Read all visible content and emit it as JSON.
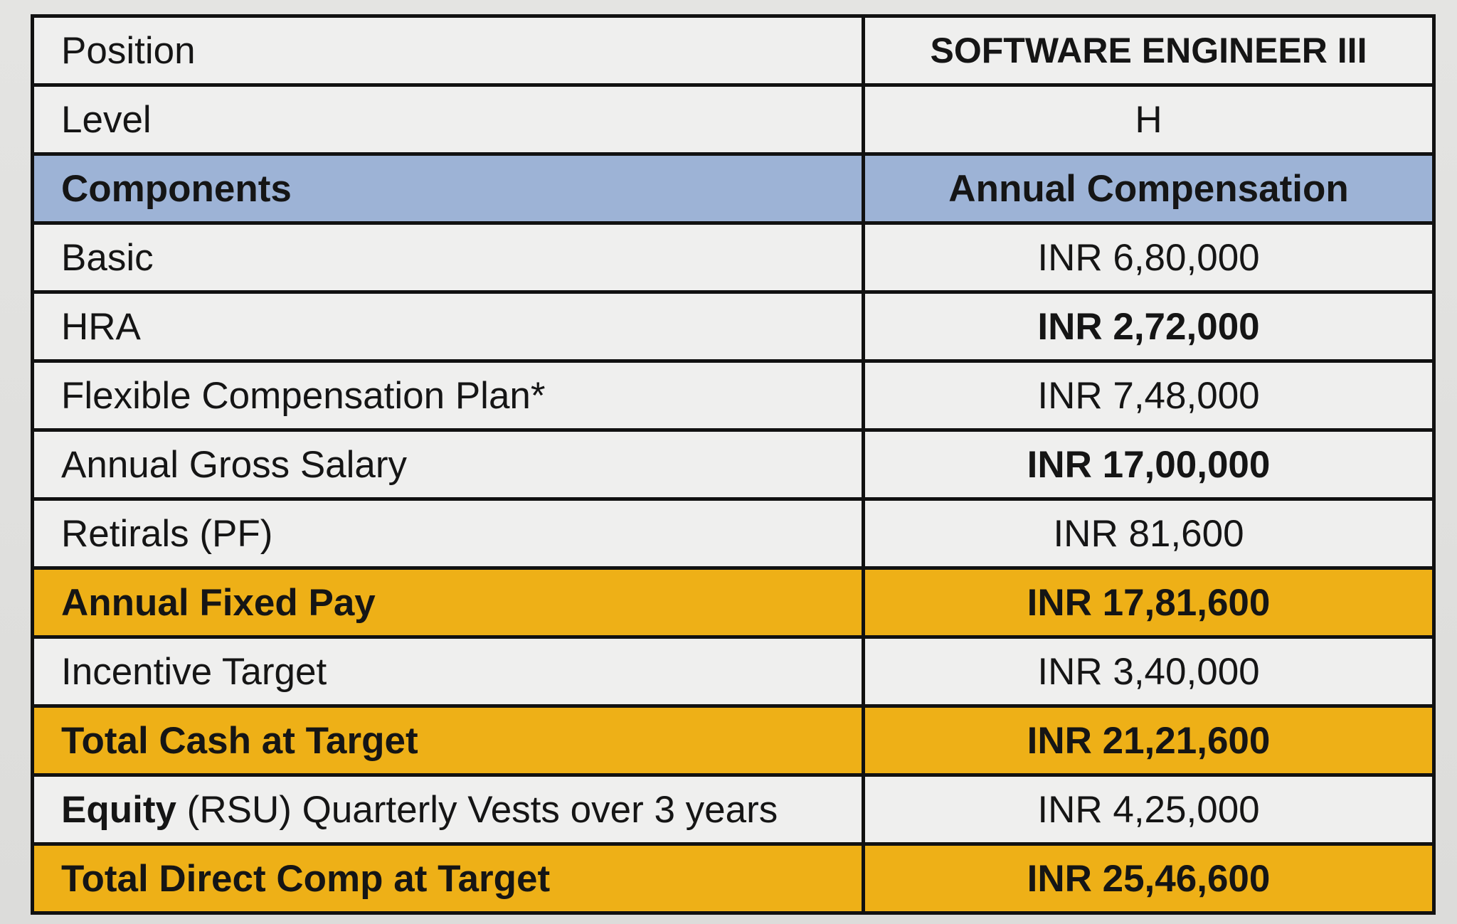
{
  "table": {
    "position": {
      "label": "Position",
      "value": "SOFTWARE ENGINEER III"
    },
    "level": {
      "label": "Level",
      "value": "H"
    },
    "header": {
      "label": "Components",
      "value": "Annual Compensation"
    },
    "rows": {
      "basic": {
        "label": "Basic",
        "value": "INR 6,80,000"
      },
      "hra": {
        "label": "HRA",
        "value": "INR 2,72,000"
      },
      "fcp": {
        "label": "Flexible Compensation Plan*",
        "value": "INR 7,48,000"
      },
      "gross": {
        "label": "Annual Gross Salary",
        "value": "INR 17,00,000"
      },
      "retirals": {
        "label": "Retirals (PF)",
        "value": "INR 81,600"
      },
      "fixed": {
        "label": "Annual Fixed Pay",
        "value": "INR 17,81,600"
      },
      "incentive": {
        "label": "Incentive Target",
        "value": "INR 3,40,000"
      },
      "cash": {
        "label": "Total Cash at Target",
        "value": "INR 21,21,600"
      },
      "equity": {
        "label_bold": "Equity",
        "label_rest": " (RSU) Quarterly Vests over 3 years",
        "value": "INR 4,25,000"
      },
      "direct": {
        "label": "Total Direct Comp at Target",
        "value": "INR 25,46,600"
      }
    }
  },
  "colors": {
    "header_blue": "#9db3d6",
    "total_gold": "#eeb017",
    "cell_white": "#efefee",
    "border": "#111111"
  }
}
